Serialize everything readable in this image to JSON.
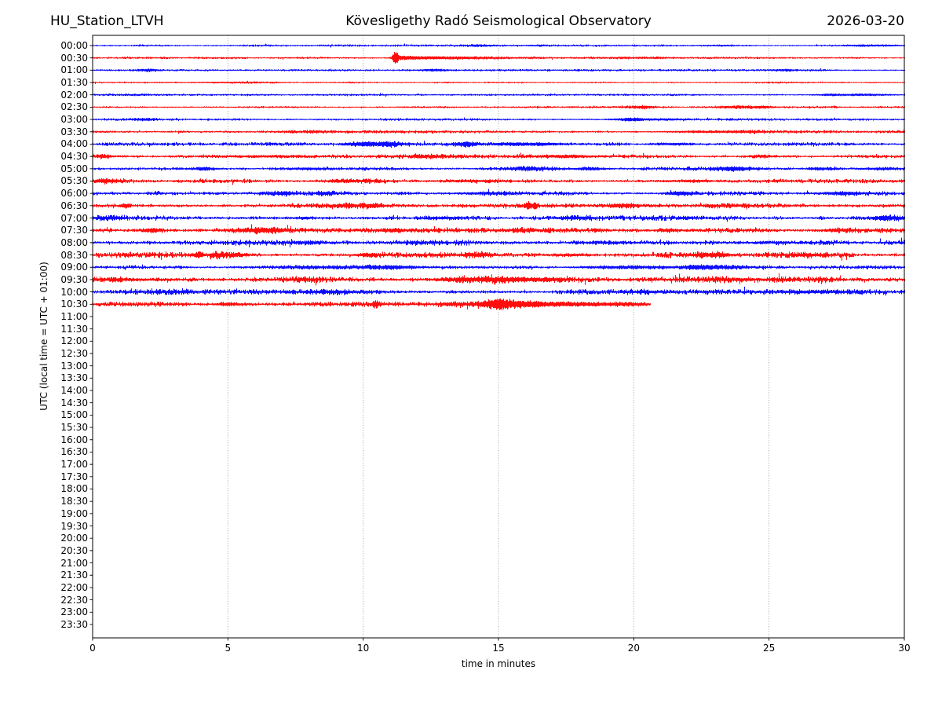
{
  "chart_data": {
    "type": "line",
    "subtype": "helicorder-day-plot",
    "titles": {
      "left": "HU_Station_LTVH",
      "center": "Kövesligethy Radó Seismological Observatory",
      "right": "2026-03-20"
    },
    "xlabel": "time in minutes",
    "ylabel": "UTC (local time = UTC + 01:00)",
    "xlim": [
      0,
      30
    ],
    "x_ticks": [
      0,
      5,
      10,
      15,
      20,
      25,
      30
    ],
    "grid_minutes": [
      5,
      10,
      15,
      20,
      25
    ],
    "grid_style": "dotted-vertical",
    "trace_colors": {
      "even_half_hour": "#0000ff",
      "odd_half_hour": "#ff0000"
    },
    "rows_per_day": 48,
    "minutes_per_row": 30,
    "data_recorded_through": "10:30",
    "last_trace_end_minute": 20.6,
    "y_tick_labels": [
      "00:00",
      "00:30",
      "01:00",
      "01:30",
      "02:00",
      "02:30",
      "03:00",
      "03:30",
      "04:00",
      "04:30",
      "05:00",
      "05:30",
      "06:00",
      "06:30",
      "07:00",
      "07:30",
      "08:00",
      "08:30",
      "09:00",
      "09:30",
      "10:00",
      "10:30",
      "11:00",
      "11:30",
      "12:00",
      "12:30",
      "13:00",
      "13:30",
      "14:00",
      "14:30",
      "15:00",
      "15:30",
      "16:00",
      "16:30",
      "17:00",
      "17:30",
      "18:00",
      "18:30",
      "19:00",
      "19:30",
      "20:00",
      "20:30",
      "21:00",
      "21:30",
      "22:00",
      "22:30",
      "23:00",
      "23:30"
    ],
    "traces": [
      {
        "utc": "00:00",
        "color": "#0000ff",
        "base": 0.5,
        "end": 30,
        "events": [
          [
            14.3,
            0.5,
            0.5
          ],
          [
            16.3,
            0.4,
            0.4
          ],
          [
            23.0,
            0.4,
            0.4
          ],
          [
            28.4,
            0.6,
            0.4
          ],
          [
            29.3,
            0.7,
            0.4
          ]
        ]
      },
      {
        "utc": "00:30",
        "color": "#ff0000",
        "base": 0.5,
        "end": 30,
        "events": [
          [
            11.18,
            7.5,
            0.07
          ],
          [
            11.5,
            1.8,
            0.25
          ],
          [
            12.3,
            1.1,
            0.6
          ],
          [
            13.4,
            0.7,
            0.8
          ],
          [
            15.0,
            0.4,
            1.0
          ],
          [
            20.0,
            0.4,
            0.8
          ]
        ]
      },
      {
        "utc": "01:00",
        "color": "#0000ff",
        "base": 0.5,
        "end": 30,
        "events": [
          [
            2.0,
            1.1,
            0.25
          ],
          [
            12.6,
            1.0,
            0.35
          ],
          [
            25.6,
            0.7,
            0.3
          ]
        ]
      },
      {
        "utc": "01:30",
        "color": "#ff0000",
        "base": 0.45,
        "end": 30,
        "events": [
          [
            5.0,
            0.3,
            1.5
          ]
        ]
      },
      {
        "utc": "02:00",
        "color": "#0000ff",
        "base": 0.5,
        "end": 30,
        "events": [
          [
            1.6,
            0.5,
            0.4
          ],
          [
            27.2,
            0.5,
            0.4
          ],
          [
            28.6,
            0.9,
            0.6
          ]
        ]
      },
      {
        "utc": "02:30",
        "color": "#ff0000",
        "base": 0.55,
        "end": 30,
        "events": [
          [
            20.3,
            1.3,
            0.35
          ],
          [
            23.9,
            1.2,
            0.5
          ],
          [
            24.8,
            0.7,
            0.3
          ]
        ]
      },
      {
        "utc": "03:00",
        "color": "#0000ff",
        "base": 0.6,
        "end": 30,
        "events": [
          [
            1.9,
            0.8,
            0.3
          ],
          [
            19.9,
            1.5,
            0.45
          ],
          [
            21.2,
            0.9,
            0.4
          ]
        ]
      },
      {
        "utc": "03:30",
        "color": "#ff0000",
        "base": 0.8,
        "end": 30,
        "events": [
          [
            8.0,
            0.5,
            0.8
          ],
          [
            22.5,
            0.8,
            0.8
          ],
          [
            24.2,
            0.8,
            0.5
          ]
        ]
      },
      {
        "utc": "04:00",
        "color": "#0000ff",
        "base": 0.9,
        "end": 30,
        "events": [
          [
            9.9,
            1.5,
            0.4
          ],
          [
            10.9,
            1.7,
            0.5
          ],
          [
            13.8,
            1.9,
            0.3
          ],
          [
            15.4,
            1.1,
            0.5
          ],
          [
            16.6,
            1.3,
            0.6
          ],
          [
            21.5,
            0.8,
            0.6
          ]
        ]
      },
      {
        "utc": "04:30",
        "color": "#ff0000",
        "base": 1.0,
        "end": 30,
        "events": [
          [
            0.4,
            1.4,
            0.2
          ],
          [
            6.0,
            0.7,
            1.2
          ],
          [
            12.5,
            0.8,
            0.8
          ],
          [
            17.6,
            1.0,
            0.9
          ],
          [
            24.8,
            0.8,
            0.4
          ]
        ]
      },
      {
        "utc": "05:00",
        "color": "#0000ff",
        "base": 1.0,
        "end": 30,
        "events": [
          [
            4.1,
            1.4,
            0.3
          ],
          [
            7.9,
            0.8,
            0.5
          ],
          [
            16.1,
            1.0,
            0.7
          ],
          [
            18.4,
            1.0,
            0.4
          ],
          [
            23.8,
            1.7,
            0.5
          ],
          [
            26.9,
            1.0,
            0.35
          ],
          [
            29.0,
            0.8,
            0.5
          ]
        ]
      },
      {
        "utc": "05:30",
        "color": "#ff0000",
        "base": 1.1,
        "end": 30,
        "events": [
          [
            0.5,
            1.4,
            0.35
          ],
          [
            9.5,
            0.7,
            0.8
          ],
          [
            14.2,
            0.7,
            0.9
          ],
          [
            22.0,
            0.6,
            0.8
          ]
        ]
      },
      {
        "utc": "06:00",
        "color": "#0000ff",
        "base": 1.1,
        "end": 30,
        "events": [
          [
            6.9,
            1.4,
            0.4
          ],
          [
            8.6,
            1.1,
            0.3
          ],
          [
            14.5,
            0.7,
            0.8
          ],
          [
            21.7,
            1.8,
            0.3
          ],
          [
            27.7,
            1.1,
            0.6
          ]
        ]
      },
      {
        "utc": "06:30",
        "color": "#ff0000",
        "base": 1.2,
        "end": 30,
        "events": [
          [
            1.2,
            2.0,
            0.12
          ],
          [
            9.4,
            1.3,
            0.4
          ],
          [
            10.4,
            1.4,
            0.3
          ],
          [
            16.08,
            3.6,
            0.08
          ],
          [
            16.33,
            2.9,
            0.08
          ],
          [
            19.6,
            1.1,
            0.6
          ],
          [
            23.5,
            0.8,
            0.6
          ]
        ]
      },
      {
        "utc": "07:00",
        "color": "#0000ff",
        "base": 1.4,
        "end": 30,
        "events": [
          [
            0.5,
            1.2,
            0.4
          ],
          [
            7.8,
            0.8,
            0.3
          ],
          [
            13.0,
            0.8,
            0.5
          ],
          [
            17.8,
            1.0,
            0.4
          ],
          [
            21.9,
            0.8,
            0.3
          ],
          [
            29.3,
            1.7,
            0.4
          ]
        ]
      },
      {
        "utc": "07:30",
        "color": "#ff0000",
        "base": 1.3,
        "end": 30,
        "events": [
          [
            2.2,
            1.8,
            0.2
          ],
          [
            6.3,
            1.7,
            0.7
          ],
          [
            11.2,
            1.1,
            0.4
          ],
          [
            16.0,
            0.8,
            0.6
          ],
          [
            21.3,
            1.3,
            0.3
          ],
          [
            27.6,
            1.1,
            0.4
          ]
        ]
      },
      {
        "utc": "08:00",
        "color": "#0000ff",
        "base": 1.6,
        "end": 30,
        "events": [
          [
            8.1,
            0.8,
            0.5
          ],
          [
            12.0,
            0.7,
            0.6
          ],
          [
            19.0,
            0.7,
            0.8
          ],
          [
            25.0,
            0.6,
            0.8
          ]
        ]
      },
      {
        "utc": "08:30",
        "color": "#ff0000",
        "base": 1.5,
        "end": 30,
        "events": [
          [
            3.9,
            2.3,
            0.15
          ],
          [
            4.6,
            1.9,
            0.2
          ],
          [
            5.3,
            1.5,
            0.3
          ],
          [
            10.1,
            1.3,
            0.3
          ],
          [
            14.2,
            1.1,
            0.4
          ],
          [
            17.7,
            0.9,
            0.5
          ],
          [
            22.9,
            1.5,
            0.5
          ],
          [
            26.4,
            0.9,
            0.4
          ]
        ]
      },
      {
        "utc": "09:00",
        "color": "#0000ff",
        "base": 0.9,
        "end": 30,
        "events": [
          [
            8.0,
            0.8,
            1.0
          ],
          [
            10.9,
            1.3,
            0.9
          ],
          [
            19.8,
            0.9,
            1.2
          ],
          [
            22.3,
            1.8,
            0.35
          ],
          [
            23.4,
            1.1,
            0.6
          ]
        ]
      },
      {
        "utc": "09:30",
        "color": "#ff0000",
        "base": 1.8,
        "end": 30,
        "events": [
          [
            1.0,
            0.7,
            1.0
          ],
          [
            7.7,
            0.9,
            0.4
          ],
          [
            13.6,
            1.4,
            0.7
          ],
          [
            15.2,
            1.8,
            0.7
          ],
          [
            16.6,
            1.3,
            0.6
          ],
          [
            24.0,
            0.8,
            1.0
          ]
        ]
      },
      {
        "utc": "10:00",
        "color": "#0000ff",
        "base": 1.4,
        "end": 30,
        "events": [
          [
            3.2,
            0.6,
            0.5
          ],
          [
            8.7,
            0.8,
            0.7
          ],
          [
            20.5,
            0.6,
            0.6
          ],
          [
            27.0,
            0.8,
            1.0
          ]
        ]
      },
      {
        "utc": "10:30",
        "color": "#ff0000",
        "base": 1.4,
        "end": 20.6,
        "events": [
          [
            5.0,
            1.1,
            0.3
          ],
          [
            10.45,
            2.8,
            0.1
          ],
          [
            13.3,
            1.1,
            0.4
          ],
          [
            14.6,
            2.4,
            0.35
          ],
          [
            15.05,
            3.4,
            0.25
          ],
          [
            15.55,
            2.4,
            0.4
          ],
          [
            16.2,
            1.7,
            0.5
          ],
          [
            17.3,
            1.3,
            0.7
          ],
          [
            18.6,
            1.0,
            0.7
          ],
          [
            19.8,
            0.8,
            0.5
          ]
        ]
      }
    ]
  }
}
